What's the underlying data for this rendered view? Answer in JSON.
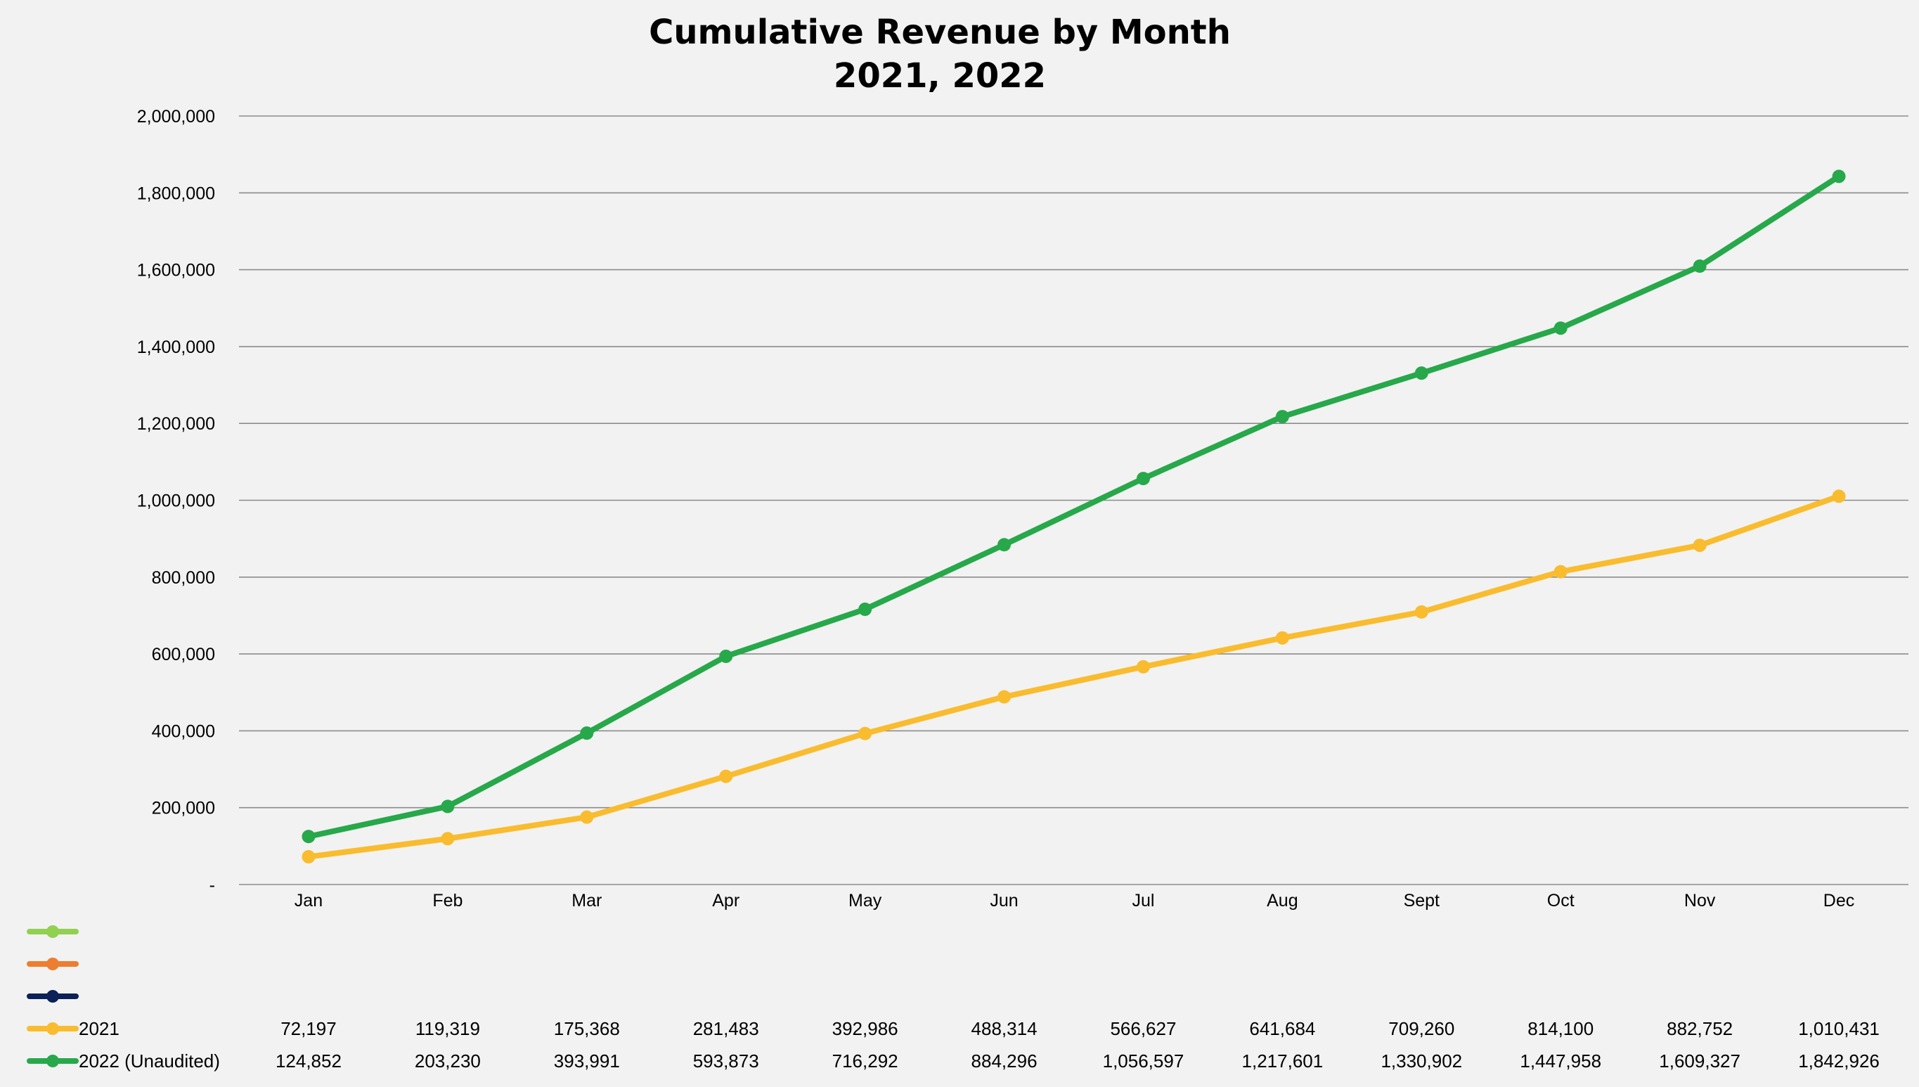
{
  "chart_data": {
    "type": "line",
    "title": "Cumulative Revenue by Month",
    "subtitle": "2021, 2022",
    "xlabel": "",
    "ylabel": "",
    "categories": [
      "Jan",
      "Feb",
      "Mar",
      "Apr",
      "May",
      "Jun",
      "Jul",
      "Aug",
      "Sept",
      "Oct",
      "Nov",
      "Dec"
    ],
    "ylim": [
      0,
      2000000
    ],
    "y_ticks": [
      0,
      200000,
      400000,
      600000,
      800000,
      1000000,
      1200000,
      1400000,
      1600000,
      1800000,
      2000000
    ],
    "y_tick_labels": [
      "-",
      "200,000",
      "400,000",
      "600,000",
      "800,000",
      "1,000,000",
      "1,200,000",
      "1,400,000",
      "1,600,000",
      "1,800,000",
      "2,000,000"
    ],
    "grid": true,
    "legend_placement": "bottom data table",
    "empty_legend_series": [
      {
        "color": "#92d050"
      },
      {
        "color": "#ed7d31"
      },
      {
        "color": "#0b2158"
      }
    ],
    "series": [
      {
        "name": "2021",
        "color": "#f9bc2f",
        "values": [
          72197,
          119319,
          175368,
          281483,
          392986,
          488314,
          566627,
          641684,
          709260,
          814100,
          882752,
          1010431
        ],
        "labels": [
          "72,197",
          "119,319",
          "175,368",
          "281,483",
          "392,986",
          "488,314",
          "566,627",
          "641,684",
          "709,260",
          "814,100",
          "882,752",
          "1,010,431"
        ]
      },
      {
        "name": "2022 (Unaudited)",
        "color": "#27a84a",
        "values": [
          124852,
          203230,
          393991,
          593873,
          716292,
          884296,
          1056597,
          1217601,
          1330902,
          1447958,
          1609327,
          1842926
        ],
        "labels": [
          "124,852",
          "203,230",
          "393,991",
          "593,873",
          "716,292",
          "884,296",
          "1,056,597",
          "1,217,601",
          "1,330,902",
          "1,447,958",
          "1,609,327",
          "1,842,926"
        ]
      }
    ]
  }
}
